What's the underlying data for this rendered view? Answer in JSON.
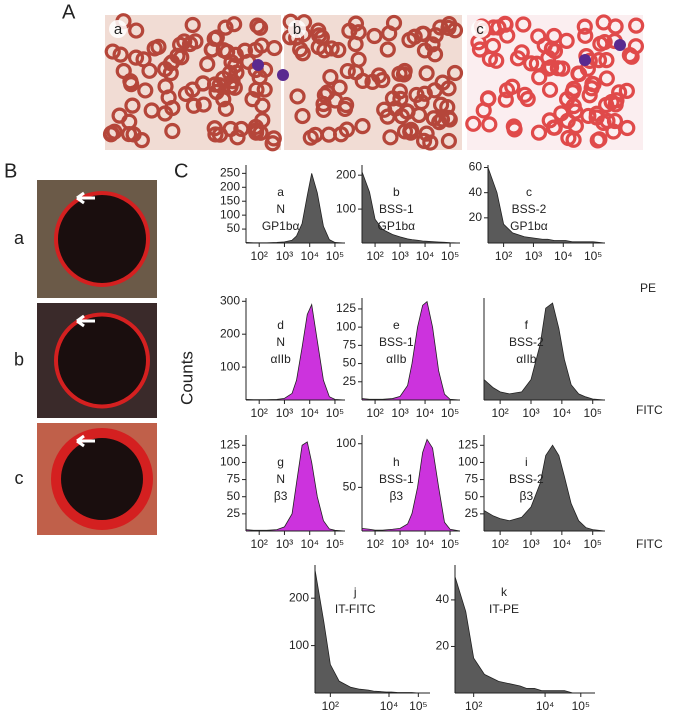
{
  "panel_a": {
    "label": "A",
    "images": [
      "a",
      "b",
      "c"
    ]
  },
  "panel_b": {
    "label": "B",
    "images": [
      "a",
      "b",
      "c"
    ]
  },
  "panel_c": {
    "label": "C",
    "y_label": "Counts",
    "row_labels": [
      "PE",
      "FITC",
      "FITC"
    ]
  },
  "chart_data": [
    {
      "type": "area",
      "annotation": [
        "a",
        "N",
        "GP1bα"
      ],
      "color": "#5a5a5a",
      "log_x": true,
      "x": [
        30,
        60,
        100,
        200,
        500,
        1000,
        2000,
        3000,
        5000,
        8000,
        12000,
        20000,
        35000,
        60000,
        100000,
        250000
      ],
      "values": [
        2,
        1,
        1,
        1,
        2,
        4,
        10,
        25,
        70,
        170,
        250,
        180,
        60,
        12,
        2,
        0
      ],
      "xlim": [
        30,
        250000
      ],
      "ylim": [
        0,
        280
      ],
      "xticks": [
        {
          "value": 100,
          "label": "10²"
        },
        {
          "value": 1000,
          "label": "10³"
        },
        {
          "value": 10000,
          "label": "10⁴"
        },
        {
          "value": 100000,
          "label": "10⁵"
        }
      ],
      "yticks": [
        50,
        100,
        150,
        200,
        250
      ]
    },
    {
      "type": "area",
      "annotation": [
        "b",
        "BSS-1",
        "GP1bα"
      ],
      "color": "#5a5a5a",
      "log_x": true,
      "x": [
        30,
        60,
        100,
        200,
        500,
        1000,
        2000,
        3000,
        5000,
        8000,
        12000,
        20000,
        35000,
        60000,
        100000,
        250000
      ],
      "values": [
        210,
        150,
        70,
        40,
        25,
        18,
        12,
        10,
        8,
        6,
        5,
        4,
        3,
        2,
        1,
        0
      ],
      "xlim": [
        30,
        250000
      ],
      "ylim": [
        0,
        230
      ],
      "xticks": [
        {
          "value": 100,
          "label": "10²"
        },
        {
          "value": 1000,
          "label": "10³"
        },
        {
          "value": 10000,
          "label": "10⁴"
        },
        {
          "value": 100000,
          "label": "10⁵"
        }
      ],
      "yticks": [
        100,
        200
      ]
    },
    {
      "type": "area",
      "annotation": [
        "c",
        "BSS-2",
        "GP1bα"
      ],
      "color": "#5a5a5a",
      "log_x": true,
      "x": [
        30,
        60,
        100,
        200,
        500,
        1000,
        2000,
        3000,
        5000,
        8000,
        12000,
        20000,
        35000,
        60000,
        100000,
        250000
      ],
      "values": [
        60,
        40,
        15,
        8,
        5,
        4,
        3,
        3,
        2,
        2,
        2,
        1,
        1,
        1,
        1,
        0
      ],
      "xlim": [
        30,
        250000
      ],
      "ylim": [
        0,
        62
      ],
      "xticks": [
        {
          "value": 100,
          "label": "10²"
        },
        {
          "value": 1000,
          "label": "10³"
        },
        {
          "value": 10000,
          "label": "10⁴"
        },
        {
          "value": 100000,
          "label": "10⁵"
        }
      ],
      "yticks": [
        20,
        40,
        60
      ]
    },
    {
      "type": "area",
      "annotation": [
        "d",
        "N",
        "αIIb"
      ],
      "color": "#cc33dd",
      "log_x": true,
      "x": [
        30,
        60,
        100,
        200,
        500,
        1000,
        2000,
        3000,
        5000,
        8000,
        12000,
        20000,
        35000,
        60000,
        100000,
        250000
      ],
      "values": [
        2,
        1,
        1,
        1,
        2,
        5,
        20,
        60,
        160,
        260,
        290,
        180,
        60,
        10,
        2,
        0
      ],
      "xlim": [
        30,
        250000
      ],
      "ylim": [
        0,
        310
      ],
      "xticks": [
        {
          "value": 100,
          "label": "10²"
        },
        {
          "value": 1000,
          "label": "10³"
        },
        {
          "value": 10000,
          "label": "10⁴"
        },
        {
          "value": 100000,
          "label": "10⁵"
        }
      ],
      "yticks": [
        100,
        200,
        300
      ]
    },
    {
      "type": "area",
      "annotation": [
        "e",
        "BSS-1",
        "αIIb"
      ],
      "color": "#cc33dd",
      "log_x": true,
      "x": [
        30,
        60,
        100,
        200,
        500,
        1000,
        2000,
        3000,
        5000,
        8000,
        12000,
        20000,
        35000,
        60000,
        100000,
        250000
      ],
      "values": [
        2,
        1,
        1,
        1,
        2,
        5,
        20,
        50,
        100,
        130,
        135,
        100,
        40,
        8,
        1,
        0
      ],
      "xlim": [
        30,
        250000
      ],
      "ylim": [
        0,
        140
      ],
      "xticks": [
        {
          "value": 100,
          "label": "10²"
        },
        {
          "value": 1000,
          "label": "10³"
        },
        {
          "value": 10000,
          "label": "10⁴"
        },
        {
          "value": 100000,
          "label": "10⁵"
        }
      ],
      "yticks": [
        25,
        50,
        75,
        100,
        125
      ]
    },
    {
      "type": "area",
      "annotation": [
        "f",
        "BSS-2",
        "αIIb"
      ],
      "color": "#5a5a5a",
      "log_x": true,
      "x": [
        30,
        60,
        100,
        200,
        500,
        1000,
        2000,
        3000,
        5000,
        8000,
        12000,
        20000,
        35000,
        60000,
        100000,
        250000
      ],
      "values": [
        20,
        12,
        8,
        6,
        8,
        20,
        55,
        90,
        95,
        70,
        40,
        15,
        6,
        3,
        1,
        0
      ],
      "xlim": [
        30,
        250000
      ],
      "ylim": [
        0,
        100
      ],
      "xticks": [
        {
          "value": 100,
          "label": "10²"
        },
        {
          "value": 1000,
          "label": "10³"
        },
        {
          "value": 10000,
          "label": "10⁴"
        },
        {
          "value": 100000,
          "label": "10⁵"
        }
      ],
      "yticks": []
    },
    {
      "type": "area",
      "annotation": [
        "g",
        "N",
        "β3"
      ],
      "color": "#cc33dd",
      "log_x": true,
      "x": [
        30,
        60,
        100,
        200,
        500,
        1000,
        2000,
        3000,
        5000,
        8000,
        12000,
        20000,
        35000,
        60000,
        100000,
        250000
      ],
      "values": [
        2,
        1,
        1,
        1,
        2,
        6,
        25,
        70,
        125,
        130,
        100,
        50,
        15,
        3,
        1,
        0
      ],
      "xlim": [
        30,
        250000
      ],
      "ylim": [
        0,
        140
      ],
      "xticks": [
        {
          "value": 100,
          "label": "10²"
        },
        {
          "value": 1000,
          "label": "10³"
        },
        {
          "value": 10000,
          "label": "10⁴"
        },
        {
          "value": 100000,
          "label": "10⁵"
        }
      ],
      "yticks": [
        25,
        50,
        75,
        100,
        125
      ]
    },
    {
      "type": "area",
      "annotation": [
        "h",
        "BSS-1",
        "β3"
      ],
      "color": "#cc33dd",
      "log_x": true,
      "x": [
        30,
        60,
        100,
        200,
        500,
        1000,
        2000,
        3000,
        5000,
        8000,
        12000,
        20000,
        35000,
        60000,
        100000,
        250000
      ],
      "values": [
        3,
        2,
        1,
        1,
        2,
        3,
        8,
        20,
        50,
        90,
        105,
        95,
        50,
        10,
        2,
        0
      ],
      "xlim": [
        30,
        250000
      ],
      "ylim": [
        0,
        110
      ],
      "xticks": [
        {
          "value": 100,
          "label": "10²"
        },
        {
          "value": 1000,
          "label": "10³"
        },
        {
          "value": 10000,
          "label": "10⁴"
        },
        {
          "value": 100000,
          "label": "10⁵"
        }
      ],
      "yticks": [
        50,
        100
      ]
    },
    {
      "type": "area",
      "annotation": [
        "i",
        "BSS-2",
        "β3"
      ],
      "color": "#5a5a5a",
      "log_x": true,
      "x": [
        30,
        60,
        100,
        200,
        500,
        1000,
        2000,
        3000,
        5000,
        8000,
        12000,
        20000,
        35000,
        60000,
        100000,
        250000
      ],
      "values": [
        30,
        22,
        18,
        15,
        20,
        35,
        70,
        110,
        125,
        110,
        80,
        40,
        15,
        5,
        2,
        0
      ],
      "xlim": [
        30,
        250000
      ],
      "ylim": [
        0,
        140
      ],
      "xticks": [
        {
          "value": 100,
          "label": "10²"
        },
        {
          "value": 1000,
          "label": "10³"
        },
        {
          "value": 10000,
          "label": "10⁴"
        },
        {
          "value": 100000,
          "label": "10⁵"
        }
      ],
      "yticks": [
        25,
        50,
        75,
        100,
        125
      ]
    },
    {
      "type": "area",
      "annotation": [
        "j",
        "IT-FITC"
      ],
      "color": "#5a5a5a",
      "log_x": true,
      "x": [
        30,
        60,
        100,
        200,
        500,
        1000,
        2000,
        3000,
        5000,
        8000,
        12000,
        20000,
        35000,
        60000,
        100000,
        250000
      ],
      "values": [
        260,
        150,
        60,
        25,
        12,
        8,
        6,
        4,
        3,
        2,
        2,
        1,
        1,
        1,
        0,
        0
      ],
      "xlim": [
        30,
        250000
      ],
      "ylim": [
        0,
        270
      ],
      "xticks": [
        {
          "value": 100,
          "label": "10²"
        },
        {
          "value": 10000,
          "label": "10⁴"
        },
        {
          "value": 100000,
          "label": "10⁵"
        }
      ],
      "yticks": [
        100,
        200
      ]
    },
    {
      "type": "area",
      "annotation": [
        "k",
        "IT-PE"
      ],
      "color": "#5a5a5a",
      "log_x": true,
      "x": [
        30,
        60,
        100,
        200,
        500,
        1000,
        2000,
        3000,
        5000,
        8000,
        12000,
        20000,
        35000,
        60000,
        100000,
        250000
      ],
      "values": [
        50,
        35,
        15,
        8,
        5,
        4,
        3,
        2,
        2,
        1,
        1,
        1,
        1,
        0,
        0,
        0
      ],
      "xlim": [
        30,
        250000
      ],
      "ylim": [
        0,
        55
      ],
      "xticks": [
        {
          "value": 100,
          "label": "10²"
        },
        {
          "value": 10000,
          "label": "10⁴"
        },
        {
          "value": 100000,
          "label": "10⁵"
        }
      ],
      "yticks": [
        20,
        40
      ]
    }
  ]
}
